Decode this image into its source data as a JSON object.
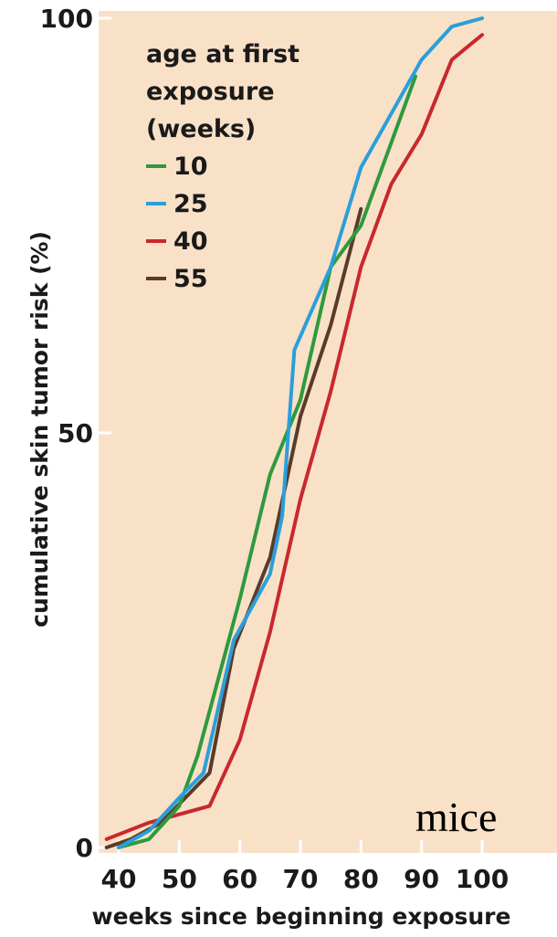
{
  "chart_data": {
    "type": "line",
    "xlabel": "weeks since beginning exposure",
    "ylabel": "cumulative skin tumor risk (%)",
    "xlim": [
      38,
      103
    ],
    "ylim": [
      0,
      100
    ],
    "xticks": [
      40,
      50,
      60,
      70,
      80,
      90,
      100
    ],
    "yticks": [
      0,
      50,
      100
    ],
    "legend": {
      "title_lines": [
        "age at first",
        "exposure",
        "(weeks)"
      ],
      "placement": "top-left"
    },
    "series": [
      {
        "name": "10",
        "color": "#2e9a3e",
        "x": [
          40,
          45,
          50,
          53,
          60,
          65,
          70,
          75,
          80,
          85,
          89
        ],
        "y": [
          0,
          1,
          5,
          11,
          30,
          45,
          54,
          70,
          75,
          85,
          93
        ]
      },
      {
        "name": "25",
        "color": "#2b9fd9",
        "x": [
          40,
          45,
          50,
          54,
          59,
          65,
          67,
          69,
          75,
          80,
          90,
          95,
          100
        ],
        "y": [
          0,
          2,
          6,
          9,
          25,
          33,
          40,
          60,
          70,
          82,
          95,
          99,
          100
        ]
      },
      {
        "name": "40",
        "color": "#c8282d",
        "x": [
          38,
          45,
          50,
          55,
          60,
          65,
          70,
          75,
          80,
          85,
          90,
          95,
          100
        ],
        "y": [
          1,
          3,
          4,
          5,
          13,
          26,
          42,
          55,
          70,
          80,
          86,
          95,
          98
        ]
      },
      {
        "name": "55",
        "color": "#5a3a2a",
        "x": [
          38,
          42,
          47,
          55,
          59,
          65,
          70,
          75,
          80
        ],
        "y": [
          0,
          1,
          3,
          9,
          24,
          35,
          52,
          63,
          77
        ]
      }
    ]
  },
  "annotation": "mice"
}
